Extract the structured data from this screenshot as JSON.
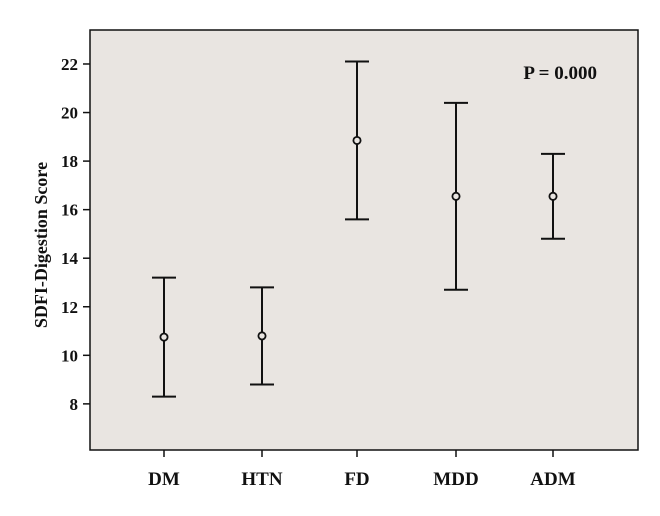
{
  "chart_data": {
    "type": "errorbar",
    "ylabel": "SDFI-Digestion Score",
    "categories": [
      "DM",
      "HTN",
      "FD",
      "MDD",
      "ADM"
    ],
    "series": [
      {
        "mean": [
          10.75,
          10.8,
          18.85,
          16.55,
          16.55
        ],
        "lower": [
          8.3,
          8.8,
          15.6,
          12.7,
          14.8
        ],
        "upper": [
          13.2,
          12.8,
          22.1,
          20.4,
          18.3
        ]
      }
    ],
    "yticks": [
      8,
      10,
      12,
      14,
      16,
      18,
      20,
      22
    ],
    "ylim": [
      6.1,
      23.4
    ],
    "annotation": "P = 0.000",
    "colors": {
      "plot_background": "#e9e5e1",
      "line": "#111111"
    },
    "grid": false
  }
}
